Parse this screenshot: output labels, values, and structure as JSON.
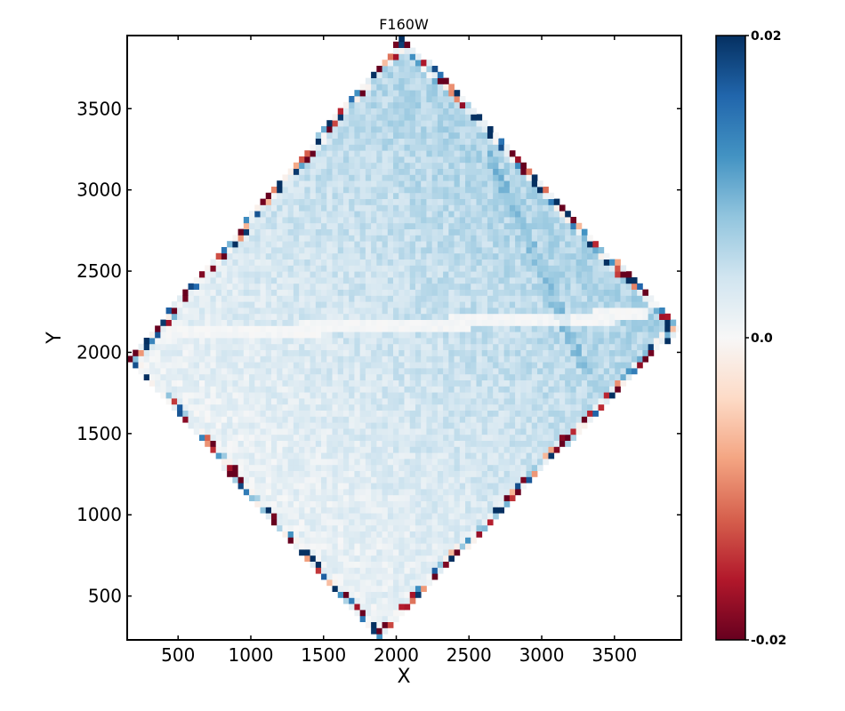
{
  "chart_data": {
    "type": "heatmap",
    "title": "F160W",
    "xlabel": "X",
    "ylabel": "Y",
    "xlim": [
      150,
      3960
    ],
    "ylim": [
      230,
      3950
    ],
    "xticks": [
      500,
      1000,
      1500,
      2000,
      2500,
      3000,
      3500
    ],
    "yticks": [
      500,
      1000,
      1500,
      2000,
      2500,
      3000,
      3500
    ],
    "grid": false,
    "colormap": "RdBu",
    "colorbar": {
      "range": [
        -0.02,
        0.02
      ],
      "ticks": [
        {
          "value": 0.02,
          "label": "0.02"
        },
        {
          "value": 0.0,
          "label": "0.0"
        },
        {
          "value": -0.02,
          "label": "-0.02"
        }
      ],
      "colors": [
        "#67001f",
        "#b2182b",
        "#d6604d",
        "#f4a582",
        "#fddbc7",
        "#f7f7f7",
        "#d1e5f0",
        "#92c5de",
        "#4393c3",
        "#2166ac",
        "#053061"
      ]
    },
    "footprint_vertices": [
      [
        2050,
        3950
      ],
      [
        3950,
        2150
      ],
      [
        1870,
        230
      ],
      [
        150,
        1960
      ]
    ],
    "grid_cells": [
      100,
      100
    ],
    "features": [
      {
        "kind": "diagonal stripe",
        "from": [
          170,
          2100
        ],
        "to": [
          3700,
          2230
        ],
        "value": 0.0
      },
      {
        "kind": "diagonal stripe",
        "from": [
          2650,
          3200
        ],
        "to": [
          3300,
          1900
        ],
        "value": 0.008
      },
      {
        "kind": "edge noise band",
        "edge": "perimeter",
        "value_range": [
          -0.02,
          0.02
        ]
      }
    ]
  }
}
